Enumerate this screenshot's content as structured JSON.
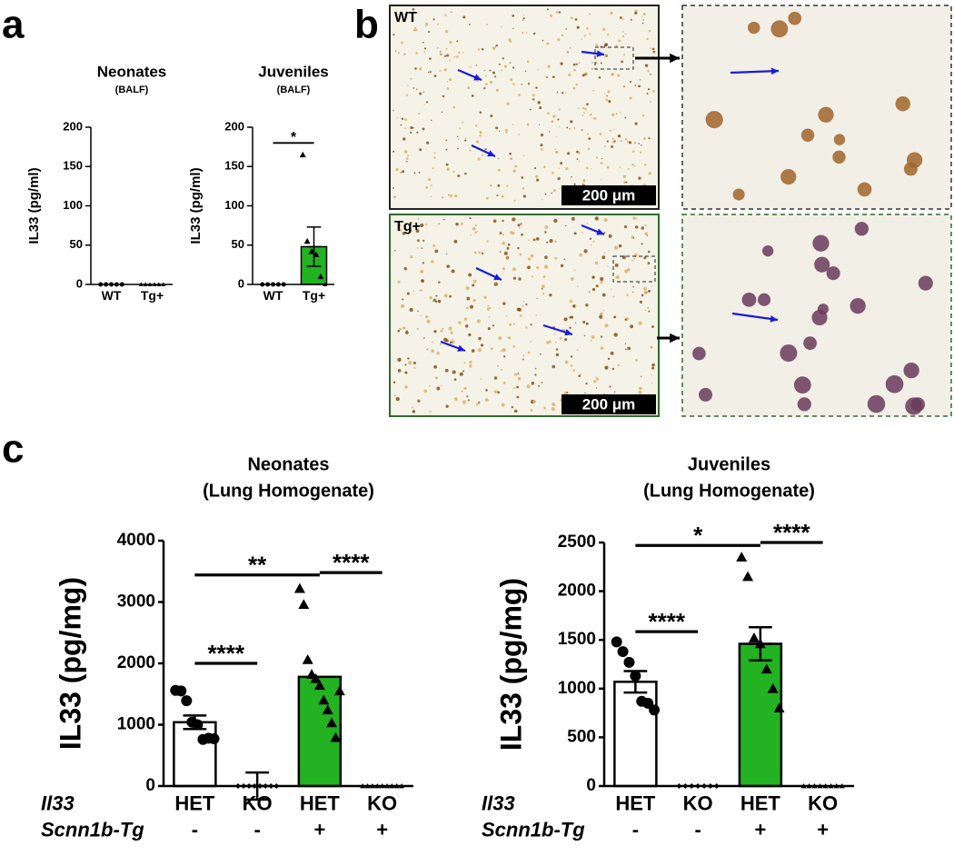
{
  "panels": [
    "a",
    "b",
    "c"
  ],
  "micrographs": [
    {
      "label": "WT",
      "scale": "200 μm"
    },
    {
      "label": "Tg+",
      "scale": "200 μm"
    }
  ],
  "chart_data": [
    {
      "type": "bar",
      "title": "Neonates",
      "subtitle": "(BALF)",
      "ylabel": "IL33 (pg/ml)",
      "categories": [
        "WT",
        "Tg+"
      ],
      "values": [
        0,
        0
      ],
      "errors": [
        0,
        0
      ],
      "colors": [
        "#ffffff",
        "#22b222"
      ],
      "markers": [
        "circle",
        "triangle"
      ],
      "points": [
        [
          0,
          0,
          0,
          0,
          0
        ],
        [
          0,
          0,
          0,
          0,
          0,
          0
        ]
      ],
      "ylim": [
        0,
        200
      ],
      "yticks": [
        0,
        50,
        100,
        150,
        200
      ],
      "annotations": []
    },
    {
      "type": "bar",
      "title": "Juveniles",
      "subtitle": "(BALF)",
      "ylabel": "IL33 (pg/ml)",
      "categories": [
        "WT",
        "Tg+"
      ],
      "values": [
        0,
        48
      ],
      "errors": [
        0,
        25
      ],
      "colors": [
        "#ffffff",
        "#22b222"
      ],
      "markers": [
        "circle",
        "triangle"
      ],
      "points": [
        [
          0,
          0,
          0,
          0,
          0
        ],
        [
          165,
          55,
          42,
          38,
          10,
          0
        ]
      ],
      "ylim": [
        0,
        200
      ],
      "yticks": [
        0,
        50,
        100,
        150,
        200
      ],
      "annotations": [
        {
          "text": "*",
          "from": 0,
          "to": 1,
          "y": 180
        }
      ]
    },
    {
      "type": "bar",
      "title": "Neonates",
      "subtitle": "(Lung Homogenate)",
      "ylabel": "IL33 (pg/mg)",
      "categories": [
        "HET",
        "KO",
        "HET",
        "KO"
      ],
      "groups": [
        "-",
        "-",
        "+",
        "+"
      ],
      "row_labels": [
        "Il33",
        "Scnn1b-Tg"
      ],
      "values": [
        1040,
        0,
        1780,
        0
      ],
      "errors": [
        110,
        220,
        0,
        0
      ],
      "colors": [
        "#ffffff",
        "#ffffff",
        "#22b222",
        "#ffffff"
      ],
      "markers": [
        "circle",
        "diamond",
        "triangle",
        "triangle"
      ],
      "points": [
        [
          1560,
          1550,
          1390,
          1040,
          1000,
          760,
          780,
          770
        ],
        [
          0,
          0,
          0,
          0,
          0,
          0,
          0,
          0
        ],
        [
          3220,
          2960,
          2060,
          1820,
          1750,
          1640,
          1400,
          1240,
          1030,
          790,
          1550
        ],
        [
          0,
          0,
          0,
          0,
          0,
          0,
          0,
          0,
          0
        ]
      ],
      "ylim": [
        0,
        4000
      ],
      "yticks": [
        0,
        1000,
        2000,
        3000,
        4000
      ],
      "annotations": [
        {
          "text": "****",
          "from": 0,
          "to": 1,
          "y": 2000
        },
        {
          "text": "**",
          "from": 0,
          "to": 2,
          "y": 3440
        },
        {
          "text": "****",
          "from": 2,
          "to": 3,
          "y": 3480
        }
      ]
    },
    {
      "type": "bar",
      "title": "Juveniles",
      "subtitle": "(Lung Homogenate)",
      "ylabel": "IL33 (pg/mg)",
      "categories": [
        "HET",
        "KO",
        "HET",
        "KO"
      ],
      "groups": [
        "-",
        "-",
        "+",
        "+"
      ],
      "row_labels": [
        "Il33",
        "Scnn1b-Tg"
      ],
      "values": [
        1070,
        0,
        1460,
        0
      ],
      "errors": [
        110,
        0,
        170,
        0
      ],
      "colors": [
        "#ffffff",
        "#ffffff",
        "#22b222",
        "#ffffff"
      ],
      "markers": [
        "circle",
        "diamond",
        "triangle",
        "triangle"
      ],
      "points": [
        [
          1480,
          1380,
          1270,
          1130,
          870,
          850,
          780
        ],
        [
          0,
          0,
          0,
          0,
          0,
          0,
          0
        ],
        [
          2350,
          2150,
          1520,
          1460,
          1200,
          1000,
          800
        ],
        [
          0,
          0,
          0,
          0,
          0,
          0,
          0,
          0
        ]
      ],
      "ylim": [
        0,
        2500
      ],
      "yticks": [
        0,
        500,
        1000,
        1500,
        2000,
        2500
      ],
      "annotations": [
        {
          "text": "*",
          "from": 0,
          "to": 2,
          "y": 2470
        },
        {
          "text": "****",
          "from": 2,
          "to": 3,
          "y": 2500
        },
        {
          "text": "****",
          "from": 0,
          "to": 1,
          "y": 1585
        }
      ]
    }
  ]
}
